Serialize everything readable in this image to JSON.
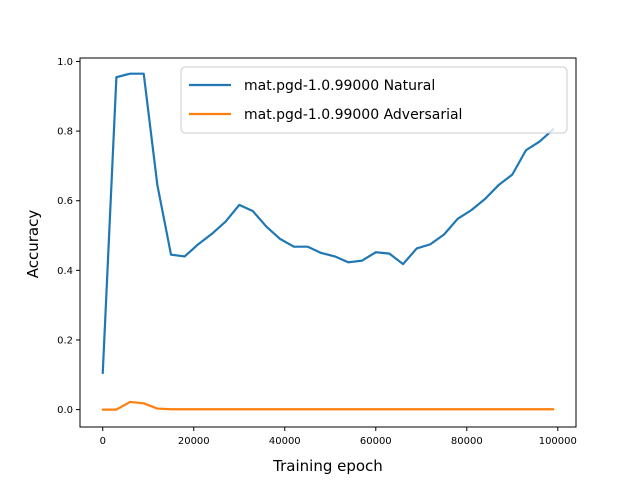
{
  "chart_data": {
    "type": "line",
    "xlabel": "Training epoch",
    "ylabel": "Accuracy",
    "xlim": [
      -5000,
      104000
    ],
    "ylim": [
      -0.05,
      1.01
    ],
    "xticks": [
      0,
      20000,
      40000,
      60000,
      80000,
      100000
    ],
    "yticks": [
      0.0,
      0.2,
      0.4,
      0.6,
      0.8,
      1.0
    ],
    "xtick_labels": [
      "0",
      "20000",
      "40000",
      "60000",
      "80000",
      "100000"
    ],
    "ytick_labels": [
      "0.0",
      "0.2",
      "0.4",
      "0.6",
      "0.8",
      "1.0"
    ],
    "grid": false,
    "legend_position": "top-right",
    "series": [
      {
        "name": "mat.pgd-1.0.99000 Natural",
        "color": "#1f77b4",
        "x": [
          0,
          3000,
          6000,
          9000,
          12000,
          15000,
          18000,
          21000,
          24000,
          27000,
          30000,
          33000,
          36000,
          39000,
          42000,
          45000,
          48000,
          51000,
          54000,
          57000,
          60000,
          63000,
          66000,
          69000,
          72000,
          75000,
          78000,
          81000,
          84000,
          87000,
          90000,
          93000,
          96000,
          99000
        ],
        "values": [
          0.105,
          0.955,
          0.965,
          0.965,
          0.645,
          0.445,
          0.44,
          0.475,
          0.505,
          0.54,
          0.588,
          0.57,
          0.525,
          0.49,
          0.468,
          0.468,
          0.45,
          0.44,
          0.423,
          0.428,
          0.452,
          0.448,
          0.418,
          0.463,
          0.475,
          0.503,
          0.548,
          0.573,
          0.605,
          0.645,
          0.675,
          0.745,
          0.77,
          0.805
        ]
      },
      {
        "name": "mat.pgd-1.0.99000 Adversarial",
        "color": "#ff7f0e",
        "x": [
          0,
          3000,
          6000,
          9000,
          12000,
          15000,
          18000,
          21000,
          24000,
          27000,
          30000,
          33000,
          36000,
          39000,
          42000,
          45000,
          48000,
          51000,
          54000,
          57000,
          60000,
          63000,
          66000,
          69000,
          72000,
          75000,
          78000,
          81000,
          84000,
          87000,
          90000,
          93000,
          96000,
          99000
        ],
        "values": [
          0.0,
          0.0,
          0.022,
          0.018,
          0.003,
          0.001,
          0.001,
          0.001,
          0.001,
          0.001,
          0.001,
          0.001,
          0.001,
          0.001,
          0.001,
          0.001,
          0.001,
          0.001,
          0.001,
          0.001,
          0.001,
          0.001,
          0.001,
          0.001,
          0.001,
          0.001,
          0.001,
          0.001,
          0.001,
          0.001,
          0.001,
          0.001,
          0.001,
          0.001
        ]
      }
    ]
  }
}
